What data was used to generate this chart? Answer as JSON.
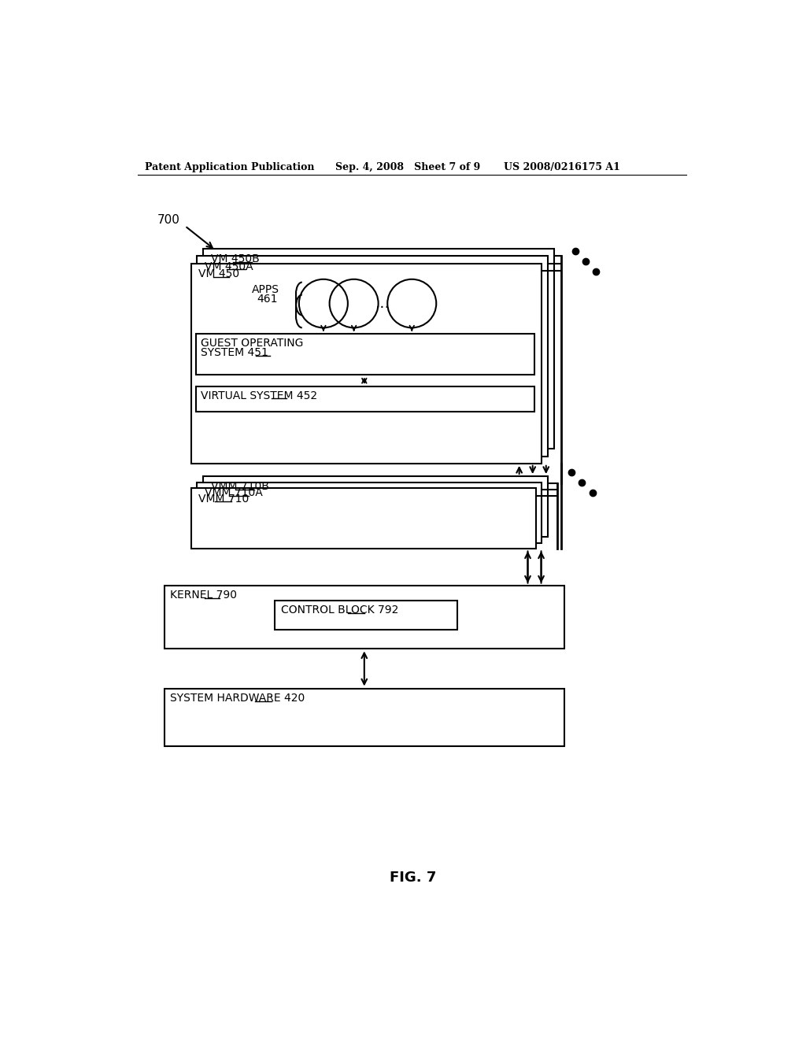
{
  "bg_color": "#ffffff",
  "header_left": "Patent Application Publication",
  "header_mid": "Sep. 4, 2008   Sheet 7 of 9",
  "header_right": "US 2008/0216175 A1",
  "fig_label": "FIG. 7",
  "label_700": "700",
  "label_vm450b": "VM 450B",
  "label_vm450a": "VM 450A",
  "label_vm450": "VM 450",
  "label_apps": "APPS",
  "label_461": "461",
  "label_gos_line1": "GUEST OPERATING",
  "label_gos_line2": "SYSTEM 451",
  "label_vs": "VIRTUAL SYSTEM 452",
  "label_vmm710b": "VMM 710B",
  "label_vmm710a": "VMM 710A",
  "label_vmm710": "VMM 710",
  "label_kernel": "KERNEL 790",
  "label_cb": "CONTROL BLOCK 792",
  "label_hw": "SYSTEM HARDWARE 420"
}
